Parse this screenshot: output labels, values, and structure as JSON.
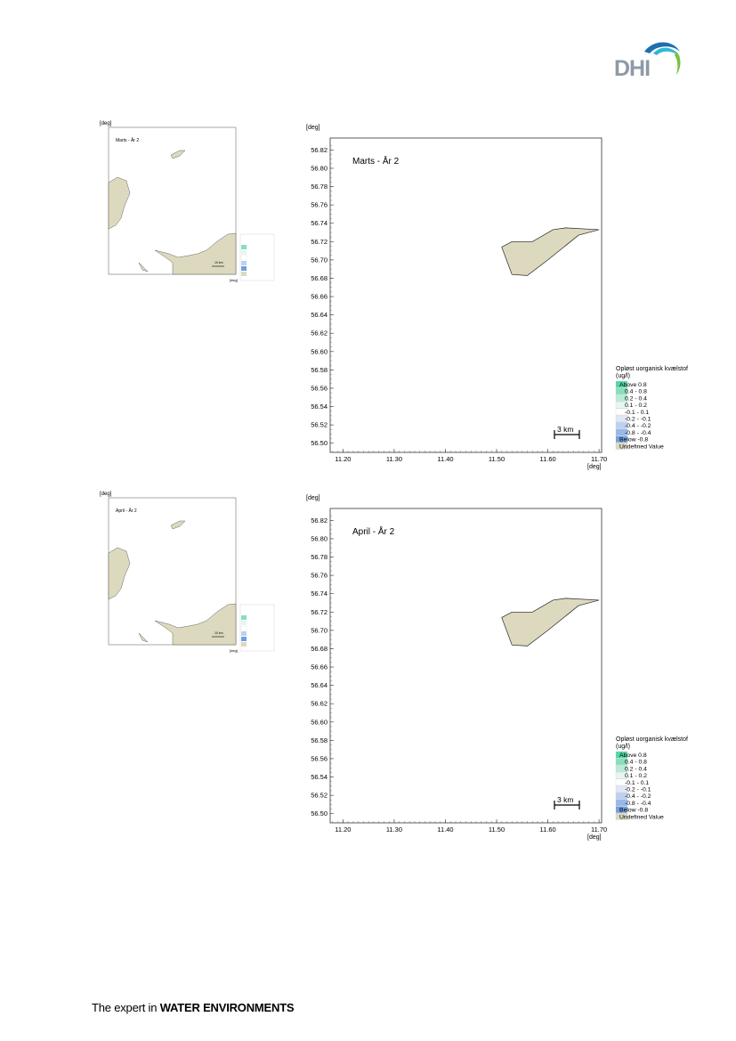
{
  "brand": {
    "logo_text": "DHI",
    "footer_prefix": "The expert in ",
    "footer_emphasis": "WATER ENVIRONMENTS",
    "colors": {
      "logo_text": "#8e9aa6",
      "swoosh_dark": "#1f6fae",
      "swoosh_light": "#31b7d6",
      "swoosh_green": "#7ac143"
    }
  },
  "axis_unit": "[deg]",
  "legend": {
    "title_line1": "Opløst uorganisk kvælstof",
    "title_line2": "(ug/l)",
    "items": [
      {
        "label": "Above  0.8",
        "color": "#54d6a4"
      },
      {
        "label": "0.4 -  0.8",
        "color": "#86e0bc"
      },
      {
        "label": "0.2 -  0.4",
        "color": "#b8ecd6"
      },
      {
        "label": "0.1 -  0.2",
        "color": "#e6f7ef"
      },
      {
        "label": "-0.1 -  0.1",
        "color": "#ffffff"
      },
      {
        "label": "-0.2 - -0.1",
        "color": "#dfe8f7"
      },
      {
        "label": "-0.4 - -0.2",
        "color": "#bcd1f0"
      },
      {
        "label": "-0.8 - -0.4",
        "color": "#98b8ea"
      },
      {
        "label": "Below -0.8",
        "color": "#6f9fe2"
      },
      {
        "label": "Undefined Value",
        "color": "#ddd9bf"
      }
    ]
  },
  "scale_label": "3 km",
  "thumb_scale_label": "10 km",
  "chart_data": [
    {
      "type": "map",
      "title": "Marts - År 2",
      "x_ticks": [
        "11.20",
        "11.30",
        "11.40",
        "11.50",
        "11.60",
        "11.70"
      ],
      "y_ticks": [
        "56.82",
        "56.80",
        "56.78",
        "56.76",
        "56.74",
        "56.72",
        "56.70",
        "56.68",
        "56.66",
        "56.64",
        "56.62",
        "56.60",
        "56.58",
        "56.56",
        "56.54",
        "56.52",
        "56.50"
      ],
      "xlim": [
        11.175,
        11.705
      ],
      "ylim": [
        56.49,
        56.833
      ],
      "land_color": "#ddd9bf",
      "land_polygon": [
        [
          11.51,
          56.714
        ],
        [
          11.53,
          56.72
        ],
        [
          11.57,
          56.72
        ],
        [
          11.61,
          56.733
        ],
        [
          11.635,
          56.735
        ],
        [
          11.7,
          56.733
        ],
        [
          11.66,
          56.727
        ],
        [
          11.6,
          56.7
        ],
        [
          11.56,
          56.683
        ],
        [
          11.53,
          56.684
        ]
      ]
    },
    {
      "type": "map",
      "title": "April - År 2",
      "x_ticks": [
        "11.20",
        "11.30",
        "11.40",
        "11.50",
        "11.60",
        "11.70"
      ],
      "y_ticks": [
        "56.82",
        "56.80",
        "56.78",
        "56.76",
        "56.74",
        "56.72",
        "56.70",
        "56.68",
        "56.66",
        "56.64",
        "56.62",
        "56.60",
        "56.58",
        "56.56",
        "56.54",
        "56.52",
        "56.50"
      ],
      "xlim": [
        11.175,
        11.705
      ],
      "ylim": [
        56.49,
        56.833
      ],
      "land_color": "#ddd9bf",
      "land_polygon": [
        [
          11.51,
          56.714
        ],
        [
          11.53,
          56.72
        ],
        [
          11.57,
          56.72
        ],
        [
          11.61,
          56.733
        ],
        [
          11.635,
          56.735
        ],
        [
          11.7,
          56.733
        ],
        [
          11.66,
          56.727
        ],
        [
          11.6,
          56.7
        ],
        [
          11.56,
          56.683
        ],
        [
          11.53,
          56.684
        ]
      ]
    }
  ],
  "thumbnails": [
    {
      "title": "Marts - År 2"
    },
    {
      "title": "April - År 2"
    }
  ]
}
